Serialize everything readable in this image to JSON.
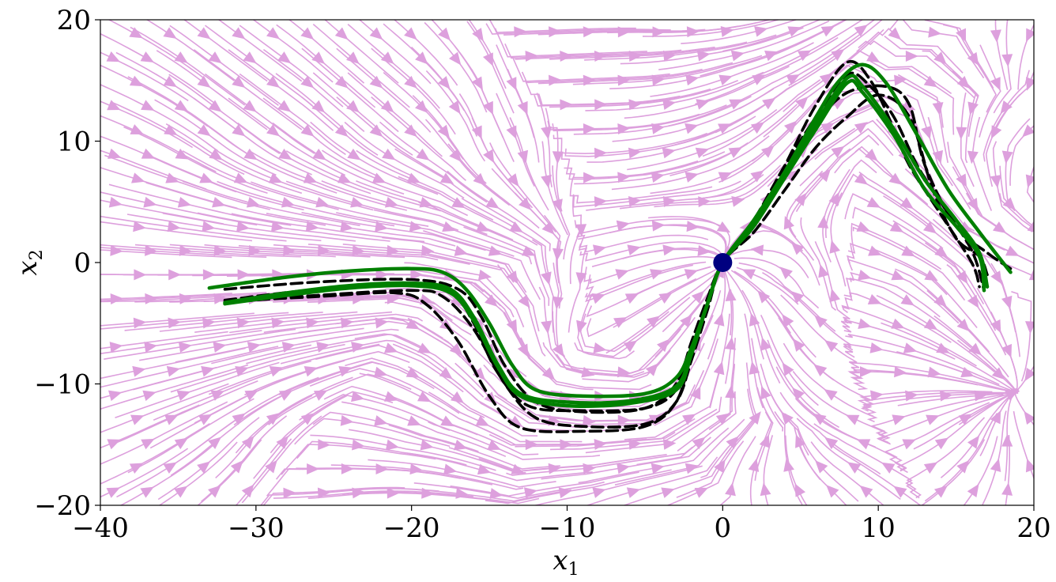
{
  "chart_data": {
    "type": "line",
    "xlabel": "x",
    "xlabel_sub": "1",
    "ylabel": "x",
    "ylabel_sub": "2",
    "xlim": [
      -40,
      20
    ],
    "ylim": [
      -20,
      20
    ],
    "xticks": [
      -40,
      -30,
      -20,
      -10,
      0,
      10,
      20
    ],
    "yticks": [
      -20,
      -10,
      0,
      10,
      20
    ],
    "xtick_labels": [
      "−40",
      "−30",
      "−20",
      "−10",
      "0",
      "10",
      "20"
    ],
    "ytick_labels": [
      "−20",
      "−10",
      "0",
      "10",
      "20"
    ],
    "grid": false,
    "colors": {
      "streamlines": "#dda0dd",
      "demonstrations": "#000000",
      "reproductions": "#008000",
      "target": "#000080"
    },
    "target_point": {
      "x": 0,
      "y": 0
    },
    "demonstrations": [
      [
        [
          -32,
          -2.2
        ],
        [
          -26,
          -1.6
        ],
        [
          -20,
          -1.4
        ],
        [
          -17,
          -2.2
        ],
        [
          -15.5,
          -4.5
        ],
        [
          -14,
          -8.5
        ],
        [
          -12,
          -11.5
        ],
        [
          -9,
          -12.3
        ],
        [
          -5,
          -12
        ],
        [
          -3,
          -10
        ],
        [
          -2,
          -6.5
        ],
        [
          -1,
          -3
        ],
        [
          0,
          0
        ],
        [
          2,
          3
        ],
        [
          4,
          7.5
        ],
        [
          6,
          11.5
        ],
        [
          8,
          14
        ],
        [
          10.5,
          14.5
        ],
        [
          12,
          13
        ],
        [
          13,
          8
        ],
        [
          15,
          3
        ],
        [
          17,
          0.8
        ],
        [
          18.5,
          -0.5
        ]
      ],
      [
        [
          -32,
          -3.3
        ],
        [
          -26,
          -2.7
        ],
        [
          -20,
          -2.3
        ],
        [
          -18,
          -2.8
        ],
        [
          -16,
          -5.5
        ],
        [
          -14,
          -10
        ],
        [
          -12,
          -12.8
        ],
        [
          -9,
          -13.5
        ],
        [
          -5,
          -13.3
        ],
        [
          -3,
          -11.5
        ],
        [
          -2,
          -8
        ],
        [
          -1,
          -4
        ],
        [
          0,
          0
        ],
        [
          2,
          2.5
        ],
        [
          4,
          6
        ],
        [
          6,
          9.5
        ],
        [
          8,
          12
        ],
        [
          10,
          13.8
        ],
        [
          12,
          12
        ],
        [
          13.5,
          6
        ],
        [
          15,
          2
        ],
        [
          16.5,
          0.5
        ],
        [
          17,
          -1
        ]
      ],
      [
        [
          -32,
          -3.2
        ],
        [
          -26,
          -2.8
        ],
        [
          -21,
          -2.5
        ],
        [
          -19,
          -3.5
        ],
        [
          -17,
          -6.5
        ],
        [
          -15,
          -11
        ],
        [
          -13,
          -13.6
        ],
        [
          -9,
          -13.9
        ],
        [
          -5,
          -13.5
        ],
        [
          -3,
          -11.5
        ],
        [
          -2,
          -7.5
        ],
        [
          -1,
          -3.5
        ],
        [
          0,
          0
        ],
        [
          2,
          3
        ],
        [
          4,
          8
        ],
        [
          6,
          13
        ],
        [
          8,
          16.5
        ],
        [
          9.5,
          15
        ],
        [
          11,
          11
        ],
        [
          12,
          8
        ],
        [
          14,
          4
        ],
        [
          16,
          0
        ],
        [
          16.5,
          -2
        ]
      ],
      [
        [
          -32,
          -3.1
        ],
        [
          -26,
          -2.2
        ],
        [
          -20,
          -1.8
        ],
        [
          -17.5,
          -2.3
        ],
        [
          -16,
          -5
        ],
        [
          -14.5,
          -9
        ],
        [
          -12.5,
          -11.8
        ],
        [
          -9,
          -12.2
        ],
        [
          -5,
          -12
        ],
        [
          -3,
          -10.5
        ],
        [
          -2,
          -7
        ],
        [
          -1,
          -3.5
        ],
        [
          0,
          0
        ],
        [
          2,
          3.5
        ],
        [
          4,
          8
        ],
        [
          6,
          12
        ],
        [
          8,
          15.5
        ],
        [
          9.5,
          14.5
        ],
        [
          11,
          12
        ],
        [
          12.5,
          8
        ],
        [
          14,
          5
        ],
        [
          16,
          1
        ],
        [
          16.8,
          -2.3
        ]
      ]
    ],
    "reproductions": [
      [
        [
          -33,
          -2.1
        ],
        [
          -28,
          -1.2
        ],
        [
          -24,
          -0.7
        ],
        [
          -20,
          -0.5
        ],
        [
          -18,
          -0.8
        ],
        [
          -16.5,
          -2.2
        ],
        [
          -15,
          -5
        ],
        [
          -13.5,
          -8.5
        ],
        [
          -12,
          -10.5
        ],
        [
          -9,
          -11
        ],
        [
          -5,
          -10.8
        ],
        [
          -3,
          -9.5
        ],
        [
          -2,
          -7
        ],
        [
          -1,
          -3.5
        ],
        [
          0,
          0
        ],
        [
          2,
          3.5
        ],
        [
          4,
          7.5
        ],
        [
          6,
          12
        ],
        [
          7.5,
          15
        ],
        [
          9,
          16.3
        ],
        [
          10.5,
          14.8
        ],
        [
          12.5,
          10.5
        ],
        [
          14.5,
          6
        ],
        [
          16.5,
          2.5
        ],
        [
          18.5,
          -0.8
        ]
      ],
      [
        [
          -32,
          -3.4
        ],
        [
          -28,
          -2.7
        ],
        [
          -24,
          -2.1
        ],
        [
          -20,
          -1.9
        ],
        [
          -17.5,
          -2.5
        ],
        [
          -16,
          -4.8
        ],
        [
          -14.5,
          -8.5
        ],
        [
          -13,
          -11
        ],
        [
          -10,
          -11.8
        ],
        [
          -6,
          -11.6
        ],
        [
          -3,
          -10.5
        ],
        [
          -2,
          -7.5
        ],
        [
          -1,
          -3.5
        ],
        [
          0,
          0
        ],
        [
          2,
          3
        ],
        [
          4,
          7
        ],
        [
          6,
          11
        ],
        [
          8,
          14.8
        ],
        [
          9,
          14
        ],
        [
          11,
          10.5
        ],
        [
          13,
          6
        ],
        [
          15,
          3
        ],
        [
          16.5,
          0.5
        ],
        [
          16.8,
          -2.3
        ]
      ],
      [
        [
          -32,
          -3.3
        ],
        [
          -28,
          -2.5
        ],
        [
          -24,
          -1.9
        ],
        [
          -20,
          -1.7
        ],
        [
          -17.5,
          -2.2
        ],
        [
          -16,
          -4.5
        ],
        [
          -14.5,
          -8.3
        ],
        [
          -13,
          -10.8
        ],
        [
          -10,
          -11.5
        ],
        [
          -6,
          -11.4
        ],
        [
          -3,
          -10.2
        ],
        [
          -2,
          -7.2
        ],
        [
          -1,
          -3.5
        ],
        [
          0,
          0
        ],
        [
          2,
          3.2
        ],
        [
          4,
          7.2
        ],
        [
          6,
          11.5
        ],
        [
          8,
          15.2
        ],
        [
          9,
          14.5
        ],
        [
          11,
          11
        ],
        [
          13,
          6.8
        ],
        [
          15,
          3.5
        ],
        [
          16.5,
          0.8
        ],
        [
          17,
          -2
        ]
      ]
    ]
  }
}
